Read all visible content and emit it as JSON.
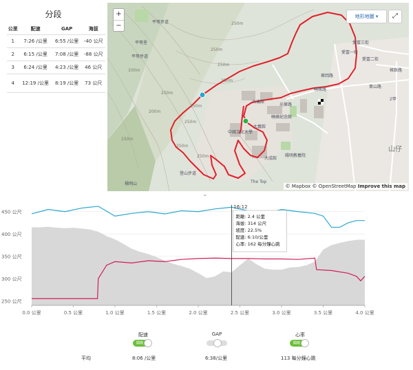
{
  "splits": {
    "title": "分段",
    "headers": [
      "公里",
      "配速",
      "GAP",
      "海拔"
    ],
    "rows": [
      [
        "1",
        "7:26 /公里",
        "6:55 /公里",
        "-40 公尺"
      ],
      [
        "2",
        "6:15 /公里",
        "7:08 /公里",
        "-88 公尺"
      ],
      [
        "3",
        "6:24 /公里",
        "4:23 /公里",
        "46 公尺"
      ],
      [
        "4",
        "12:19 /公里",
        "8:19 /公里",
        "73 公尺"
      ]
    ]
  },
  "map": {
    "zoom_in": "+",
    "zoom_out": "−",
    "layer_button": "地形地圖 ▾",
    "fullscreen": "⤢",
    "attribution": "© Mapbox © OpenStreetMap",
    "improve": "Improve this map",
    "route_color": "#e0202a",
    "labels": [
      "250m",
      "250m",
      "250m",
      "250m",
      "250m",
      "250m",
      "250m",
      "250m",
      "250m",
      "100m",
      "150m",
      "200m",
      "平等步道",
      "平等步道",
      "平等里",
      "楊明山",
      "中國文化大學",
      "大成館",
      "大義館",
      "大倫館",
      "曉峰紀念館",
      "陽明教養院",
      "愛富三街",
      "愛富二街",
      "格致路",
      "華岡路",
      "菁山路",
      "光華路",
      "山仔",
      "愛富一街",
      "曉峰路",
      "The Top",
      "2甲",
      "登山步道"
    ]
  },
  "chart": {
    "y_ticks": [
      "450 公尺",
      "400 公尺",
      "350 公尺",
      "300 公尺",
      "250 公尺"
    ],
    "x_ticks": [
      "0.0 公里",
      "0.5 公里",
      "1.0 公里",
      "1.5 公里",
      "2.0 公里",
      "2.5 公里",
      "3.0 公里",
      "3.5 公里",
      "4.0 公里"
    ],
    "elevation_color": "#d8d8d8",
    "pace_color": "#2aa6cf",
    "hr_color": "#d01c5c",
    "tooltip": {
      "time": "16:12",
      "lines": [
        "距離: 2.4 公里",
        "海拔: 314 公尺",
        "坡度: 22.5%",
        "配速: 6:10/公里",
        "心率: 162 每分鐘心跳"
      ]
    }
  },
  "chart_data": {
    "type": "line",
    "x_unit": "公里",
    "xlim": [
      0,
      4.0
    ],
    "series": [
      {
        "name": "海拔",
        "x": [
          0,
          0.1,
          0.2,
          0.3,
          0.4,
          0.5,
          0.6,
          0.7,
          0.8,
          0.9,
          1.0,
          1.1,
          1.2,
          1.3,
          1.4,
          1.5,
          1.6,
          1.7,
          1.8,
          1.9,
          2.0,
          2.1,
          2.2,
          2.3,
          2.4,
          2.5,
          2.6,
          2.7,
          2.8,
          2.9,
          3.0,
          3.1,
          3.2,
          3.3,
          3.4,
          3.5,
          3.6,
          3.7,
          3.8,
          3.9,
          4.0
        ],
        "y": [
          415,
          415,
          416,
          414,
          413,
          414,
          412,
          410,
          405,
          395,
          388,
          378,
          367,
          360,
          355,
          348,
          340,
          333,
          328,
          322,
          312,
          301,
          305,
          316,
          314,
          330,
          345,
          332,
          322,
          320,
          320,
          325,
          326,
          330,
          338,
          365,
          375,
          380,
          384,
          387,
          387
        ]
      },
      {
        "name": "配速",
        "x": [
          0,
          0.2,
          0.4,
          0.6,
          0.8,
          1.0,
          1.2,
          1.4,
          1.6,
          1.8,
          2.0,
          2.2,
          2.4,
          2.6,
          2.8,
          3.0,
          3.2,
          3.4,
          3.5,
          3.6,
          3.7,
          3.8,
          3.9,
          4.0
        ],
        "y": [
          445,
          455,
          450,
          458,
          462,
          440,
          446,
          450,
          445,
          452,
          450,
          456,
          460,
          452,
          445,
          455,
          450,
          446,
          440,
          415,
          415,
          425,
          430,
          430
        ]
      },
      {
        "name": "心率",
        "x": [
          0,
          0.6,
          0.79,
          0.8,
          0.9,
          1.0,
          1.2,
          1.4,
          1.6,
          1.8,
          2.0,
          2.2,
          2.4,
          2.6,
          2.8,
          3.0,
          3.2,
          3.4,
          3.42,
          3.6,
          3.8,
          3.9,
          3.95,
          4.0
        ],
        "y": [
          255,
          255,
          255,
          300,
          330,
          338,
          335,
          340,
          338,
          343,
          345,
          346,
          345,
          345,
          344,
          344,
          343,
          346,
          320,
          318,
          312,
          305,
          295,
          305
        ]
      }
    ],
    "ylim": [
      250,
      460
    ],
    "tooltip_x": 2.4
  },
  "toggles": [
    {
      "label": "配速",
      "state": "開啟",
      "on": true
    },
    {
      "label": "GAP",
      "state": "",
      "on": false
    },
    {
      "label": "心率",
      "state": "開啟",
      "on": true
    }
  ],
  "averages": {
    "label": "平均",
    "pace": "8:06 /公里",
    "gap": "6:38/公里",
    "hr": "113 每分鐘心跳"
  }
}
